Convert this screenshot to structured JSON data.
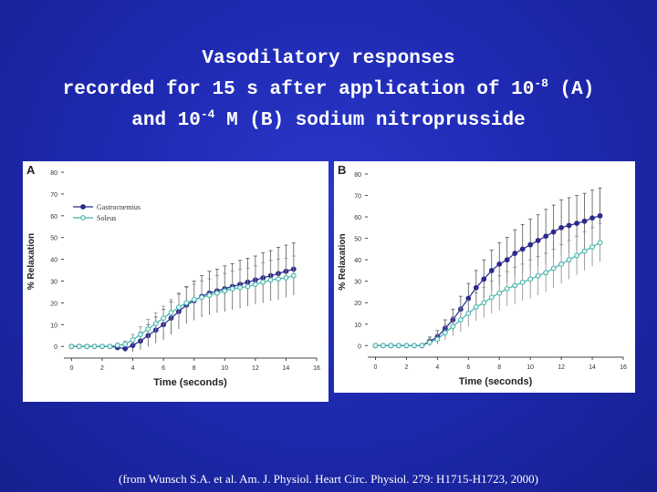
{
  "title": {
    "line1": "Vasodilatory responses",
    "line2_pre": "recorded for 15 s after application of 10",
    "line2_sup": "-8",
    "line2_post": " (A)",
    "line3_pre": "and 10",
    "line3_sup": "-4",
    "line3_post": " M (B) sodium nitroprusside"
  },
  "citation": "(from Wunsch S.A. et al. Am. J. Physiol. Heart Circ. Physiol. 279: H1715-H1723, 2000)",
  "colors": {
    "background": "#1f2ab3",
    "gastrocnemius": "#2a2a8c",
    "soleus": "#3fb0a8",
    "axis": "#444444"
  },
  "chart_data": [
    {
      "panel_label": "A",
      "type": "line",
      "xlabel": "Time (seconds)",
      "ylabel": "% Relaxation",
      "xlim": [
        -0.5,
        16
      ],
      "ylim": [
        -2,
        80
      ],
      "xticks": [
        0,
        2,
        4,
        6,
        8,
        10,
        12,
        14,
        16
      ],
      "yticks": [
        0,
        10,
        20,
        30,
        40,
        50,
        60,
        70,
        80
      ],
      "legend": "top-left",
      "x": [
        0,
        0.5,
        1,
        1.5,
        2,
        2.5,
        3,
        3.5,
        4,
        4.5,
        5,
        5.5,
        6,
        6.5,
        7,
        7.5,
        8,
        8.5,
        9,
        9.5,
        10,
        10.5,
        11,
        11.5,
        12,
        12.5,
        13,
        13.5,
        14,
        14.5
      ],
      "series": [
        {
          "name": "Gastrocnemius",
          "values": [
            0,
            0,
            0,
            0,
            0,
            0,
            -0.5,
            -1,
            0.5,
            2.5,
            5,
            7.5,
            10,
            13,
            16,
            19,
            21,
            23,
            24.5,
            25.5,
            26.5,
            27.5,
            28.5,
            29.5,
            30.5,
            31.5,
            32.5,
            33.5,
            34.5,
            35.5
          ],
          "errors": [
            0,
            0,
            0,
            0,
            0,
            0,
            1,
            1.5,
            3,
            4,
            5,
            6,
            7,
            7.5,
            8,
            8.5,
            9,
            9.5,
            10,
            10,
            10.5,
            10.5,
            11,
            11,
            11,
            11.5,
            11.5,
            12,
            12,
            12
          ]
        },
        {
          "name": "Soleus",
          "values": [
            0,
            0,
            0,
            0,
            0,
            0,
            0.5,
            1,
            3,
            5.5,
            8,
            10.5,
            13,
            15.5,
            18,
            20,
            21.5,
            22.5,
            23.5,
            24.5,
            25.5,
            26.5,
            27,
            27.5,
            28.5,
            29.5,
            30.5,
            31,
            31.5,
            32.5
          ],
          "errors": [
            0,
            0,
            0,
            0,
            0,
            0,
            1,
            1.5,
            2.5,
            3.5,
            4.5,
            5,
            5.5,
            6,
            6.5,
            7,
            7,
            7.5,
            7.5,
            8,
            8,
            8,
            8.5,
            8.5,
            8.5,
            9,
            9,
            9,
            9,
            9
          ]
        }
      ]
    },
    {
      "panel_label": "B",
      "type": "line",
      "xlabel": "Time (seconds)",
      "ylabel": "% Relaxation",
      "xlim": [
        -0.5,
        16
      ],
      "ylim": [
        -2,
        80
      ],
      "xticks": [
        0,
        2,
        4,
        6,
        8,
        10,
        12,
        14,
        16
      ],
      "yticks": [
        0,
        10,
        20,
        30,
        40,
        50,
        60,
        70,
        80
      ],
      "x": [
        0,
        0.5,
        1,
        1.5,
        2,
        2.5,
        3,
        3.5,
        4,
        4.5,
        5,
        5.5,
        6,
        6.5,
        7,
        7.5,
        8,
        8.5,
        9,
        9.5,
        10,
        10.5,
        11,
        11.5,
        12,
        12.5,
        13,
        13.5,
        14,
        14.5
      ],
      "series": [
        {
          "name": "Gastrocnemius",
          "values": [
            0,
            0,
            0,
            0,
            0,
            0,
            0,
            2,
            4,
            8,
            12,
            17,
            22,
            27,
            31,
            35,
            38,
            40,
            43,
            45,
            47,
            49,
            51,
            53,
            55,
            56,
            57,
            58,
            59.5,
            60.5
          ],
          "errors": [
            0,
            0,
            0,
            0,
            0,
            0,
            1,
            2,
            3,
            4,
            5,
            6,
            7,
            8,
            9,
            9.5,
            10,
            10.5,
            11,
            11.5,
            12,
            12,
            12.5,
            12.5,
            13,
            13,
            13,
            13,
            13,
            13
          ]
        },
        {
          "name": "Soleus",
          "values": [
            0,
            0,
            0,
            0,
            0,
            0,
            0,
            1.5,
            3,
            6,
            9,
            12,
            15,
            18,
            20,
            22.5,
            24.5,
            26.5,
            28,
            29.5,
            31,
            32.5,
            34,
            36,
            38,
            40,
            42,
            44,
            46,
            48
          ],
          "errors": [
            0,
            0,
            0,
            0,
            0,
            0,
            1,
            1.5,
            2.5,
            3.5,
            4.5,
            5.5,
            6,
            6.5,
            7,
            7.5,
            8,
            8,
            8.5,
            8.5,
            9,
            9,
            9,
            9,
            9,
            9,
            9,
            9,
            9,
            9
          ]
        }
      ]
    }
  ]
}
